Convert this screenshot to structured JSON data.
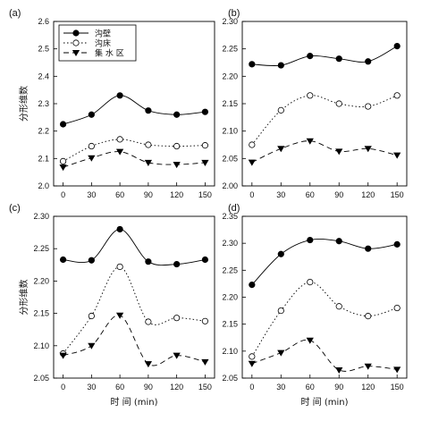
{
  "shared": {
    "xlabel": "时 间  (min)",
    "ylabel": "分形维数",
    "x": [
      0,
      30,
      60,
      90,
      120,
      150
    ],
    "legend": [
      {
        "name": "沟壁",
        "marker": "circle-filled",
        "line": "solid"
      },
      {
        "name": "沟床",
        "marker": "circle-open",
        "line": "dotted"
      },
      {
        "name": "集 水 区",
        "marker": "triangle-down",
        "line": "dashed"
      }
    ]
  },
  "chart_data": [
    {
      "type": "line",
      "panel": "(a)",
      "x": [
        0,
        30,
        60,
        90,
        120,
        150
      ],
      "ylim": [
        2.0,
        2.6
      ],
      "yticks": [
        2.0,
        2.1,
        2.2,
        2.3,
        2.4,
        2.5,
        2.6
      ],
      "ytick_labels": [
        "2.0",
        "2.1",
        "2.2",
        "2.3",
        "2.4",
        "2.5",
        "2.6"
      ],
      "xlabel": "",
      "ylabel": "分形维数",
      "legend_placement": "top-left",
      "series": [
        {
          "name": "沟壁",
          "values": [
            2.225,
            2.26,
            2.33,
            2.275,
            2.26,
            2.27
          ]
        },
        {
          "name": "沟床",
          "values": [
            2.09,
            2.145,
            2.17,
            2.15,
            2.145,
            2.148
          ]
        },
        {
          "name": "集 水 区",
          "values": [
            2.068,
            2.102,
            2.125,
            2.085,
            2.078,
            2.085
          ]
        }
      ]
    },
    {
      "type": "line",
      "panel": "(b)",
      "x": [
        0,
        30,
        60,
        90,
        120,
        150
      ],
      "ylim": [
        2.0,
        2.3
      ],
      "yticks": [
        2.0,
        2.05,
        2.1,
        2.15,
        2.2,
        2.25,
        2.3
      ],
      "ytick_labels": [
        "2.00",
        "2.05",
        "2.10",
        "2.15",
        "2.20",
        "2.25",
        "2.30"
      ],
      "xlabel": "",
      "ylabel": "",
      "series": [
        {
          "name": "沟壁",
          "values": [
            2.222,
            2.22,
            2.237,
            2.232,
            2.227,
            2.255
          ]
        },
        {
          "name": "沟床",
          "values": [
            2.075,
            2.138,
            2.165,
            2.15,
            2.145,
            2.165
          ]
        },
        {
          "name": "集 水 区",
          "values": [
            2.043,
            2.068,
            2.082,
            2.063,
            2.068,
            2.056
          ]
        }
      ]
    },
    {
      "type": "line",
      "panel": "(c)",
      "x": [
        0,
        30,
        60,
        90,
        120,
        150
      ],
      "ylim": [
        2.05,
        2.3
      ],
      "yticks": [
        2.05,
        2.1,
        2.15,
        2.2,
        2.25,
        2.3
      ],
      "ytick_labels": [
        "2.05",
        "2.10",
        "2.15",
        "2.20",
        "2.25",
        "2.30"
      ],
      "xlabel": "时 间  (min)",
      "ylabel": "分形维数",
      "series": [
        {
          "name": "沟壁",
          "values": [
            2.233,
            2.232,
            2.28,
            2.23,
            2.226,
            2.233
          ]
        },
        {
          "name": "沟床",
          "values": [
            2.088,
            2.146,
            2.222,
            2.137,
            2.143,
            2.138
          ]
        },
        {
          "name": "集 水 区",
          "values": [
            2.085,
            2.1,
            2.147,
            2.072,
            2.085,
            2.075
          ]
        }
      ]
    },
    {
      "type": "line",
      "panel": "(d)",
      "x": [
        0,
        30,
        60,
        90,
        120,
        150
      ],
      "ylim": [
        2.05,
        2.35
      ],
      "yticks": [
        2.05,
        2.1,
        2.15,
        2.2,
        2.25,
        2.3,
        2.35
      ],
      "ytick_labels": [
        "2.05",
        "2.10",
        "2.15",
        "2.20",
        "2.25",
        "2.30",
        "2.35"
      ],
      "xlabel": "时 间  (min)",
      "ylabel": "",
      "series": [
        {
          "name": "沟壁",
          "values": [
            2.223,
            2.28,
            2.306,
            2.304,
            2.29,
            2.298
          ]
        },
        {
          "name": "沟床",
          "values": [
            2.09,
            2.175,
            2.228,
            2.183,
            2.165,
            2.18
          ]
        },
        {
          "name": "集 水 区",
          "values": [
            2.077,
            2.097,
            2.12,
            2.065,
            2.072,
            2.066
          ]
        }
      ]
    }
  ]
}
